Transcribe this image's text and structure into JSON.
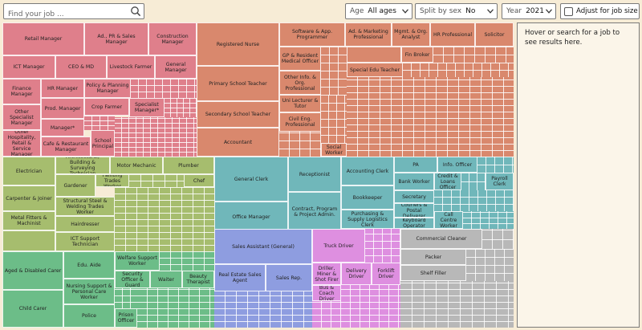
{
  "search": {
    "placeholder": "Find your job ..."
  },
  "age": {
    "label": "Age",
    "value": "All ages"
  },
  "split": {
    "label": "Split by sex",
    "value": "No"
  },
  "year": {
    "label": "Year",
    "value": "2021"
  },
  "adjust": {
    "label": "Adjust for job size",
    "checked": false
  },
  "panel": {
    "message": "Hover or search for a job to see results here."
  },
  "colors": {
    "management": "#df7f8b",
    "professional": "#d9886d",
    "trades": "#a6bd6e",
    "community": "#6cbd88",
    "clerical": "#70b7ba",
    "sales": "#8e9de0",
    "machinery": "#de8fe0",
    "labourers": "#b8b8b8"
  },
  "treemap": {
    "management": {
      "big": [
        "Retail Manager",
        "Ad., PR & Sales Manager",
        "Construction Manager",
        "ICT Manager",
        "CEO & MD",
        "Livestock Farmer",
        "General Manager"
      ],
      "small": [
        "Finance Manager",
        "HR Manager",
        "Policy & Planning Manager",
        "Other Specialist Manager",
        "Prod. Manager",
        "Crop Farmer",
        "Specialist Manager*",
        "Other Hospitality, Retail & Service Manager",
        "Manager*",
        "Cafe & Restaurant Manager",
        "School Principal"
      ]
    },
    "professional": {
      "big": [
        "Registered Nurse",
        "Primary School Teacher",
        "Secondary School Teacher",
        "Accountant"
      ],
      "small": [
        "Software & App. Programmer",
        "Ad. & Marketing Professional",
        "Mgmt. & Org. Analyst",
        "HR Professional",
        "Solicitor",
        "GP & Resident Medical Officer",
        "Fin Broker",
        "Special Edu Teacher",
        "Other Info. & Org. Professional",
        "Uni Lecturer & Tutor",
        "Civil Eng. Professional",
        "Social Worker"
      ]
    },
    "trades": {
      "big": [
        "Electrician",
        "Architectural, Building & Surveying Technician",
        "Motor Mechanic",
        "Plumber",
        "Gardener",
        "Painting Trades Worker",
        "Chef",
        "Carpenter & Joiner",
        "Metal Fitters & Machinist",
        "Structural Steel & Welding Trades Worker",
        "Hairdresser",
        "ICT Support Technician"
      ],
      "small": []
    },
    "community": {
      "big": [
        "Aged & Disabled Carer",
        "Edu. Aide",
        "Welfare Support Worker",
        "Child Carer",
        "Security Officer & Guard",
        "Waiter",
        "Beauty Therapist",
        "Nursing Support & Personal Care Worker",
        "Police",
        "Prison Officer"
      ],
      "small": []
    },
    "clerical": {
      "big": [
        "General Clerk",
        "Receptionist",
        "Accounting Clerk",
        "PA",
        "Info. Officer",
        "Bank Worker",
        "Credit & Loans Officer",
        "Payroll Clerk",
        "Office Manager",
        "Contract, Program & Project Admin.",
        "Bookkeeper",
        "Secretary",
        "Couriers & Postal Deliverer",
        "Purchasing & Supply Logistics Clerk",
        "Keyboard Operator",
        "Call Centre Worker"
      ],
      "small": []
    },
    "sales": {
      "big": [
        "Sales Assistant (General)",
        "Real Estate Sales Agent",
        "Sales Rep."
      ],
      "small": []
    },
    "machinery": {
      "big": [
        "Truck Driver",
        "Driller, Miner & Shot Firer",
        "Delivery Driver",
        "Forklift Driver",
        "Bus & Coach Driver"
      ],
      "small": []
    },
    "labourers": {
      "big": [
        "Commercial Cleaner",
        "Packer",
        "Shelf Filler"
      ],
      "small": []
    }
  }
}
